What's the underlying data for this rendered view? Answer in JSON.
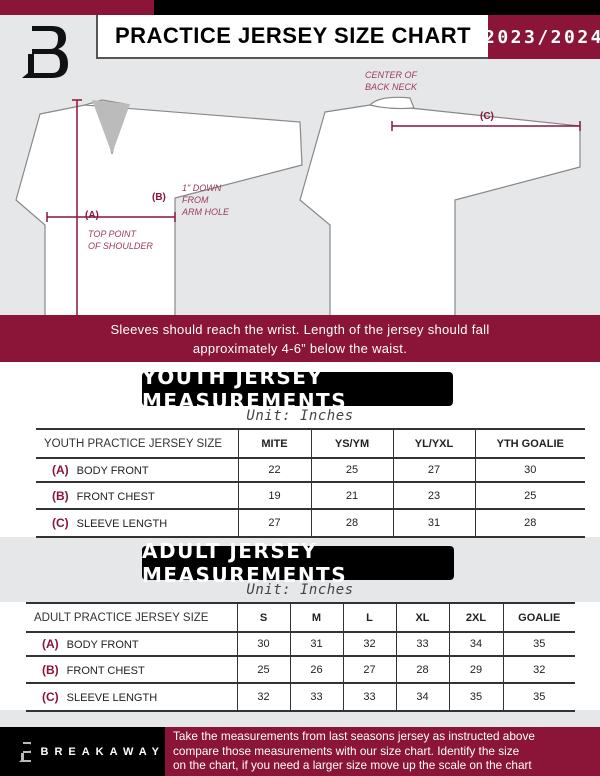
{
  "header": {
    "title": "PRACTICE JERSEY SIZE CHART",
    "season": "2023/2024",
    "logo": "B"
  },
  "diagram": {
    "label_a": "(A)",
    "note_a": [
      "TOP POINT",
      "OF SHOULDER"
    ],
    "label_b": "(B)",
    "note_b": [
      "1\" DOWN",
      "FROM",
      "ARM HOLE"
    ],
    "label_c": "(C)",
    "note_c": [
      "CENTER OF",
      "BACK NECK"
    ]
  },
  "banner": {
    "line1": "Sleeves should reach the wrist. Length of the jersey should fall",
    "line2": "approximately 4-6” below the waist."
  },
  "youth": {
    "title": "YOUTH JERSEY MEASUREMENTS",
    "unit": "Unit: Inches",
    "headers": [
      "YOUTH PRACTICE JERSEY SIZE",
      "MITE",
      "YS/YM",
      "YL/YXL",
      "YTH GOALIE"
    ],
    "rows": [
      {
        "code": "(A)",
        "name": "BODY FRONT",
        "values": [
          "22",
          "25",
          "27",
          "30"
        ]
      },
      {
        "code": "(B)",
        "name": "FRONT CHEST",
        "values": [
          "19",
          "21",
          "23",
          "25"
        ]
      },
      {
        "code": "(C)",
        "name": "SLEEVE LENGTH",
        "values": [
          "27",
          "28",
          "31",
          "28"
        ]
      }
    ]
  },
  "adult": {
    "title": "ADULT JERSEY MEASUREMENTS",
    "unit": "Unit: Inches",
    "headers": [
      "ADULT PRACTICE JERSEY SIZE",
      "S",
      "M",
      "L",
      "XL",
      "2XL",
      "GOALIE"
    ],
    "rows": [
      {
        "code": "(A)",
        "name": "BODY FRONT",
        "values": [
          "30",
          "31",
          "32",
          "33",
          "34",
          "35"
        ]
      },
      {
        "code": "(B)",
        "name": "FRONT CHEST",
        "values": [
          "25",
          "26",
          "27",
          "28",
          "29",
          "32"
        ]
      },
      {
        "code": "(C)",
        "name": "SLEEVE LENGTH",
        "values": [
          "32",
          "33",
          "33",
          "34",
          "35",
          "35"
        ]
      }
    ]
  },
  "footer": {
    "brand": "BREAKAWAY",
    "text": [
      "Take the measurements from last seasons jersey as instructed above",
      "compare those measurements  with our size chart. Identify the size",
      "on the chart, if you need a larger size move up the scale on the chart"
    ]
  },
  "colors": {
    "accent": "#8a1538",
    "dark": "#000000",
    "background": "#e6e7e9"
  }
}
